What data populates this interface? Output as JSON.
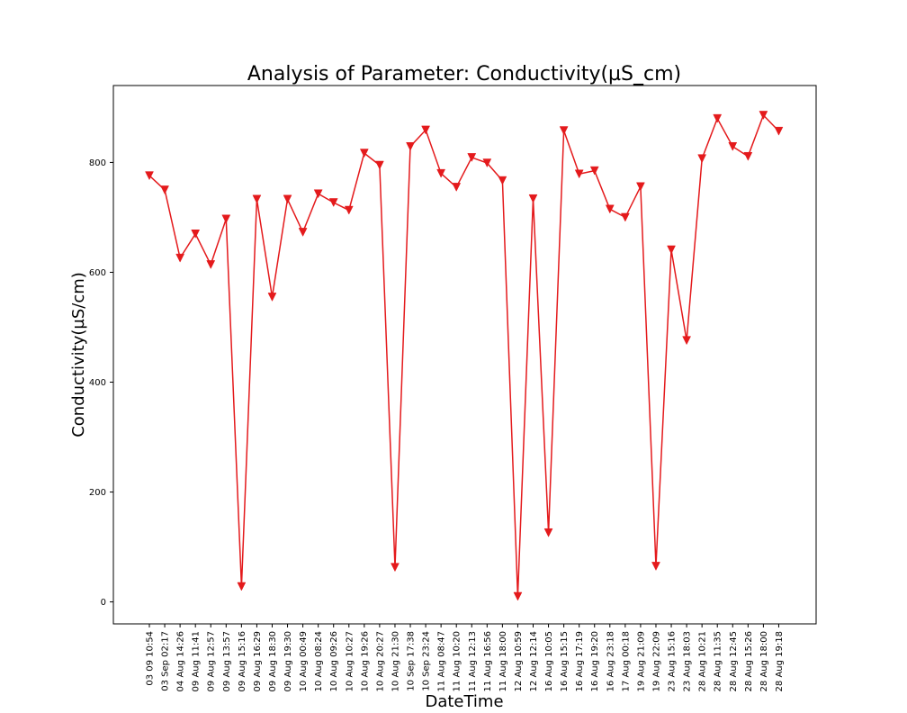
{
  "chart_data": {
    "type": "line",
    "title": "Analysis of Parameter: Conductivity(µS_cm)",
    "xlabel": "DateTime",
    "ylabel": "Conductivity(µS/cm)",
    "ylim": [
      -40,
      940
    ],
    "yticks": [
      0,
      200,
      400,
      600,
      800
    ],
    "grid": false,
    "legend": "none",
    "marker": "triangle-down",
    "color": "#e41a1c",
    "categories": [
      "03 09 10:54",
      "03 Sep 02:17",
      "04 Aug 14:26",
      "09 Aug 11:41",
      "09 Aug 12:57",
      "09 Aug 13:57",
      "09 Aug 15:16",
      "09 Aug 16:29",
      "09 Aug 18:30",
      "09 Aug 19:30",
      "10 Aug 00:49",
      "10 Aug 08:24",
      "10 Aug 09:26",
      "10 Aug 10:27",
      "10 Aug 19:26",
      "10 Aug 20:27",
      "10 Aug 21:30",
      "10 Sep 17:38",
      "10 Sep 23:24",
      "11 Aug 08:47",
      "11 Aug 10:20",
      "11 Aug 12:13",
      "11 Aug 16:56",
      "11 Aug 18:00",
      "12 Aug 10:59",
      "12 Aug 12:14",
      "16 Aug 10:05",
      "16 Aug 15:15",
      "16 Aug 17:19",
      "16 Aug 19:20",
      "16 Aug 23:18",
      "17 Aug 00:18",
      "19 Aug 21:09",
      "19 Aug 22:09",
      "23 Aug 15:16",
      "23 Aug 18:03",
      "28 Aug 10:21",
      "28 Aug 11:35",
      "28 Aug 12:45",
      "28 Aug 15:26",
      "28 Aug 18:00",
      "28 Aug 19:18"
    ],
    "values": [
      776,
      750,
      626,
      670,
      614,
      697,
      28,
      733,
      555,
      733,
      673,
      743,
      727,
      713,
      817,
      795,
      63,
      829,
      859,
      780,
      755,
      809,
      799,
      767,
      10,
      734,
      126,
      858,
      779,
      785,
      715,
      700,
      756,
      65,
      641,
      476,
      807,
      880,
      829,
      811,
      886,
      857
    ]
  }
}
